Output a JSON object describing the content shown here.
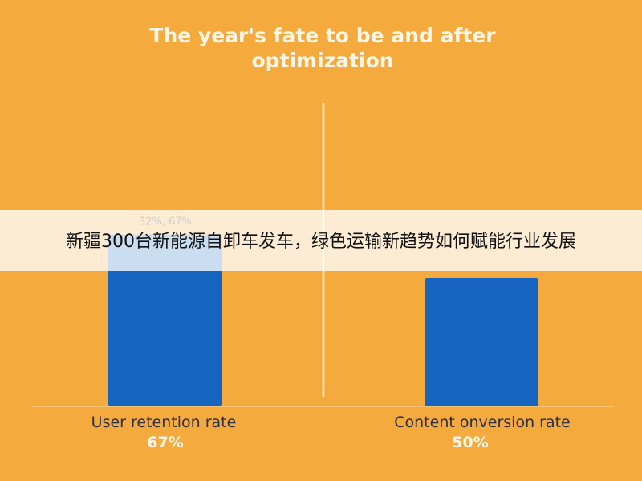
{
  "chart_data": {
    "type": "bar",
    "title": [
      "The year's fate to be and after",
      "optimization"
    ],
    "categories": [
      "User retention rate",
      "Content onversion rate"
    ],
    "values": [
      67,
      50
    ],
    "value_labels": [
      "67%",
      "50%"
    ],
    "color": "#1565c0",
    "annotation": "32%, 67%"
  },
  "banner": "新疆300台新能源自卸车发车，绿色运输新趋势如何赋能行业发展"
}
